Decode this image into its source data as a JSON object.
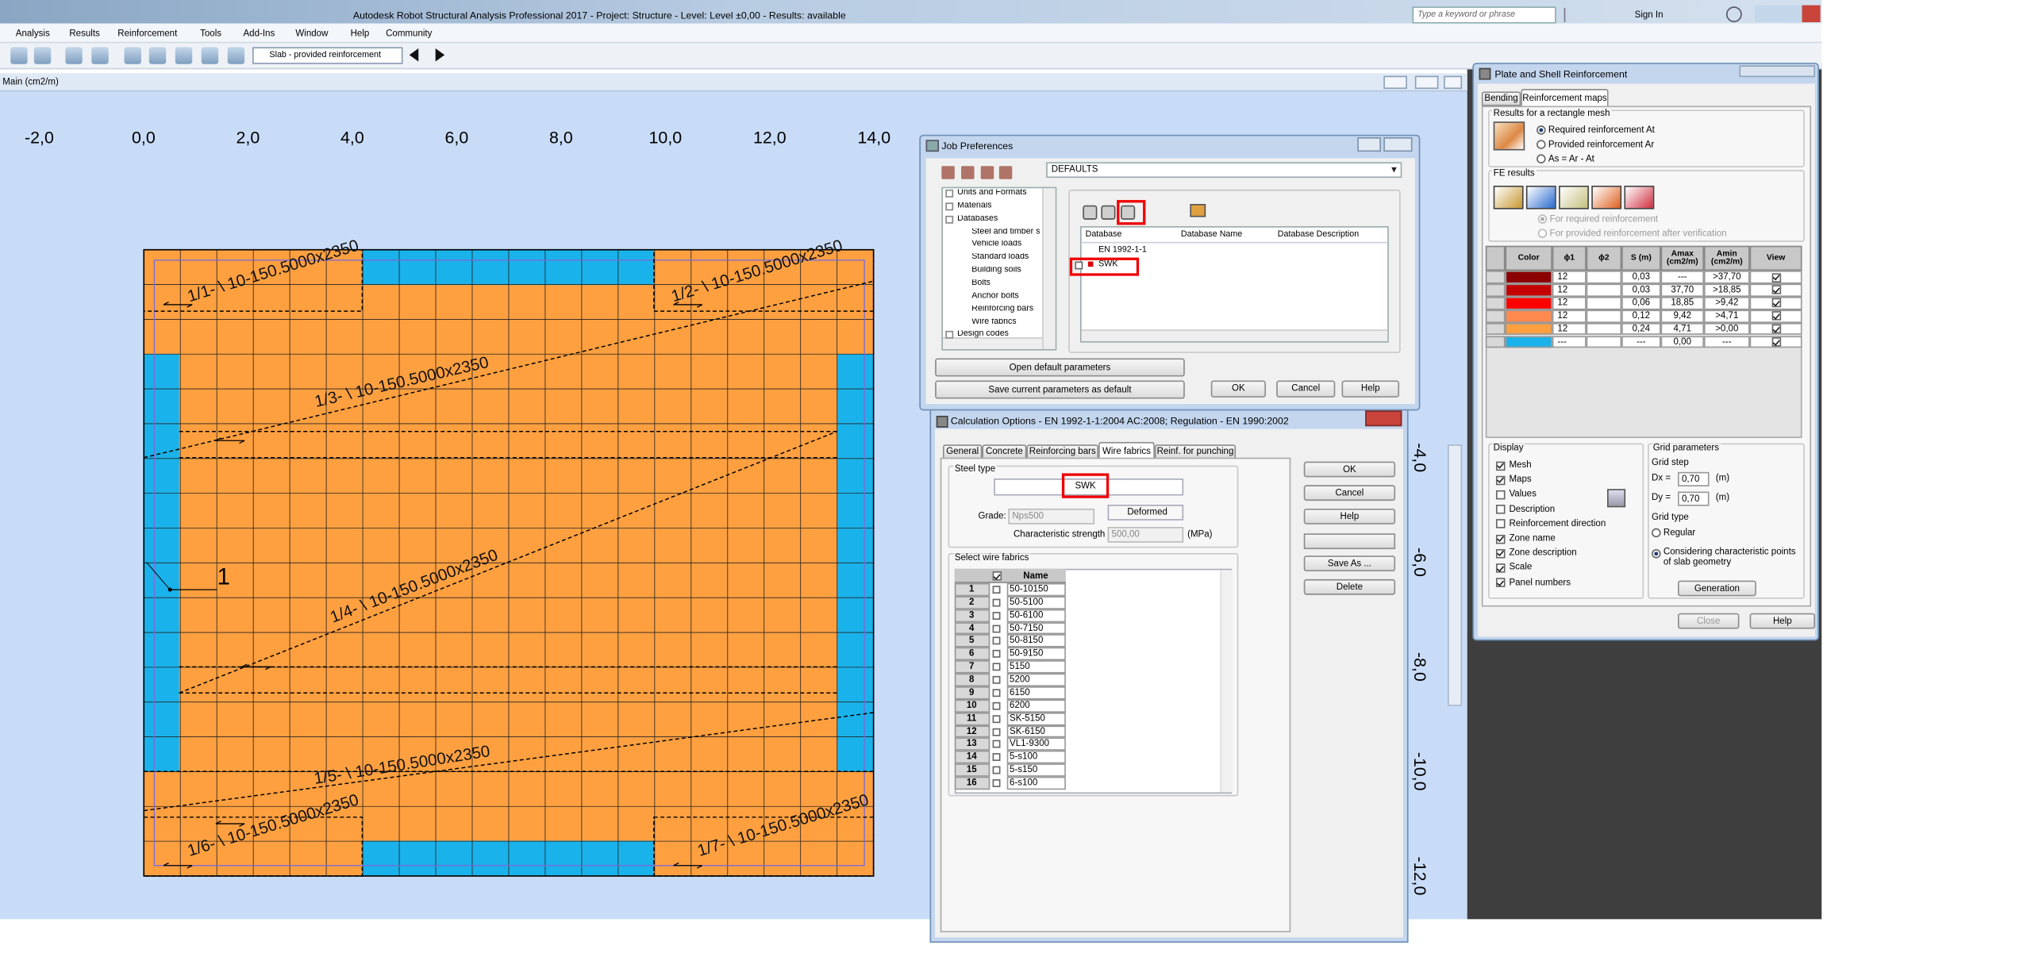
{
  "title_bar": {
    "title": "Autodesk Robot Structural Analysis Professional 2017 - Project: Structure - Level: Level ±0,00 - Results: available",
    "search": "Type a keyword or phrase",
    "sign_in": "Sign In"
  },
  "menu": [
    "Analysis",
    "Results",
    "Reinforcement",
    "Tools",
    "Add-Ins",
    "Window",
    "Help",
    "Community"
  ],
  "toolbar": {
    "selection": "Slab - provided reinforcement"
  },
  "view": {
    "title": "Main (cm2/m)",
    "ruler_top": [
      "-2,0",
      "0,0",
      "2,0",
      "4,0",
      "6,0",
      "8,0",
      "10,0",
      "12,0",
      "14,0"
    ],
    "ruler_right": [
      "-4,0",
      "-6,0",
      "-8,0",
      "-10,0",
      "-12,0"
    ],
    "zones": [
      "1/1- \\ 10-150.5000x2350",
      "1/2- \\ 10-150.5000x2350",
      "1/3- \\ 10-150.5000x2350",
      "1/4- \\ 10-150.5000x2350",
      "1/5- \\ 10-150.5000x2350",
      "1/6- \\ 10-150.5000x2350",
      "1/7- \\ 10-150.5000x2350"
    ],
    "marker": "1"
  },
  "job_preferences": {
    "title": "Job Preferences",
    "defaults": "DEFAULTS",
    "tree": [
      {
        "label": "Units and Formats",
        "level": 0
      },
      {
        "label": "Materials",
        "level": 0
      },
      {
        "label": "Databases",
        "level": 0
      },
      {
        "label": "Steel and timber s",
        "level": 1
      },
      {
        "label": "Vehicle loads",
        "level": 1
      },
      {
        "label": "Standard loads",
        "level": 1
      },
      {
        "label": "Building soils",
        "level": 1
      },
      {
        "label": "Bolts",
        "level": 1
      },
      {
        "label": "Anchor bolts",
        "level": 1
      },
      {
        "label": "Reinforcing bars",
        "level": 1
      },
      {
        "label": "Wire fabrics",
        "level": 1
      },
      {
        "label": "Design codes",
        "level": 0
      }
    ],
    "columns": [
      "Database",
      "Database Name",
      "Database Description"
    ],
    "rows": [
      "EN 1992-1-1",
      "SWK"
    ],
    "open_default": "Open default parameters",
    "save_default": "Save current parameters as default",
    "buttons": [
      "OK",
      "Cancel",
      "Help"
    ]
  },
  "calculation_options": {
    "title": "Calculation Options - EN 1992-1-1:2004 AC:2008;  Regulation - EN 1990:2002",
    "tabs": [
      "General",
      "Concrete",
      "Reinforcing bars",
      "Wire fabrics",
      "Reinf. for punching"
    ],
    "steel_type_label": "Steel type",
    "steel_type": "SWK",
    "deformed": "Deformed",
    "grade_label": "Grade:",
    "grade": "Nps500",
    "strength_label": "Characteristic strength",
    "strength": "500,00",
    "strength_unit": "(MPa)",
    "select_label": "Select wire fabrics",
    "name_header": "Name",
    "fabrics": [
      {
        "no": 1,
        "name": "50-10150"
      },
      {
        "no": 2,
        "name": "50-5100"
      },
      {
        "no": 3,
        "name": "50-6100"
      },
      {
        "no": 4,
        "name": "50-7150"
      },
      {
        "no": 5,
        "name": "50-8150"
      },
      {
        "no": 6,
        "name": "50-9150"
      },
      {
        "no": 7,
        "name": "5150"
      },
      {
        "no": 8,
        "name": "5200"
      },
      {
        "no": 9,
        "name": "6150"
      },
      {
        "no": 10,
        "name": "6200"
      },
      {
        "no": 11,
        "name": "SK-5150"
      },
      {
        "no": 12,
        "name": "SK-6150"
      },
      {
        "no": 13,
        "name": "VL1-9300"
      },
      {
        "no": 14,
        "name": "5-s100"
      },
      {
        "no": 15,
        "name": "5-s150"
      },
      {
        "no": 16,
        "name": "6-s100"
      }
    ],
    "buttons": [
      "OK",
      "Cancel",
      "Help",
      "Save As ...",
      "Delete"
    ]
  },
  "plate_reinforcement": {
    "title": "Plate and Shell Reinforcement",
    "tabs": [
      "Bending",
      "Reinforcement maps"
    ],
    "results_label": "Results for a rectangle mesh",
    "results": [
      "Required reinforcement At",
      "Provided reinforcement Ar",
      "As = Ar - At"
    ],
    "results_selected": 0,
    "fe_label": "FE results",
    "fe": [
      "For required reinforcement",
      "For provided reinforcement after verification"
    ],
    "fe_selected": 0,
    "headers": [
      "Color",
      "ϕ1",
      "ϕ2",
      "S (m)",
      "Amax (cm2/m)",
      "Amin (cm2/m)",
      "View"
    ],
    "rows": [
      {
        "color": "#8b0000",
        "d1": "12",
        "s": "0,03",
        "amax": "---",
        "amin": ">37,70"
      },
      {
        "color": "#c40000",
        "d1": "12",
        "s": "0,03",
        "amax": "37,70",
        "amin": ">18,85"
      },
      {
        "color": "#ff0000",
        "d1": "12",
        "s": "0,06",
        "amax": "18,85",
        "amin": ">9,42"
      },
      {
        "color": "#ff8a50",
        "d1": "12",
        "s": "0,12",
        "amax": "9,42",
        "amin": ">4,71"
      },
      {
        "color": "#ffa040",
        "d1": "12",
        "s": "0,24",
        "amax": "4,71",
        "amin": ">0,00"
      },
      {
        "color": "#1ab2ea",
        "d1": "---",
        "s": "---",
        "amax": "0,00",
        "amin": "---"
      }
    ],
    "display_label": "Display",
    "display": [
      {
        "label": "Mesh",
        "checked": true
      },
      {
        "label": "Maps",
        "checked": true
      },
      {
        "label": "Values",
        "checked": false
      },
      {
        "label": "Description",
        "checked": false
      },
      {
        "label": "Reinforcement direction",
        "checked": false
      },
      {
        "label": "Zone name",
        "checked": true
      },
      {
        "label": "Zone description",
        "checked": true
      },
      {
        "label": "Scale",
        "checked": true
      },
      {
        "label": "Panel numbers",
        "checked": true
      }
    ],
    "grid_label": "Grid parameters",
    "grid_step": "Grid step",
    "dx_label": "Dx =",
    "dx": "0,70",
    "dx_unit": "(m)",
    "dy_label": "Dy =",
    "dy": "0,70",
    "dy_unit": "(m)",
    "grid_type": "Grid type",
    "grid_types": [
      "Regular",
      "Considering characteristic points of slab geometry"
    ],
    "grid_type_selected": 1,
    "generation": "Generation",
    "buttons": [
      "Close",
      "Help"
    ]
  }
}
